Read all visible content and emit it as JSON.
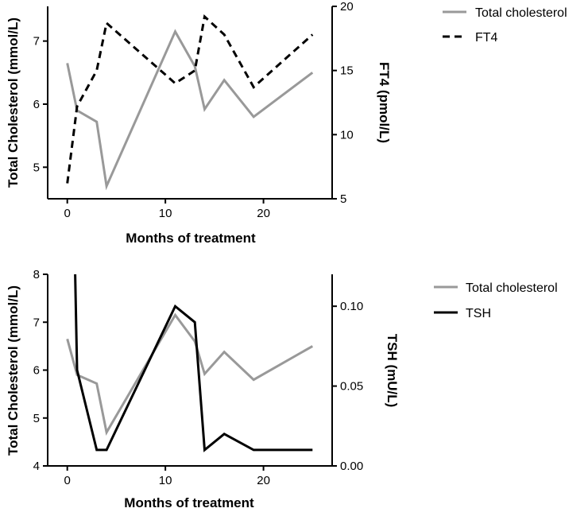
{
  "chart_data": [
    {
      "type": "line",
      "xlabel": "Months of treatment",
      "ylabel": "Total Cholesterol (mmol/L)",
      "y2label": "FT4 (pmol/L)",
      "xlim": [
        -2,
        27
      ],
      "ylim": [
        4.5,
        7.55
      ],
      "y2lim": [
        5,
        20
      ],
      "xticks": [
        0,
        10,
        20
      ],
      "yticks": [
        5,
        6,
        7
      ],
      "y2ticks": [
        5,
        10,
        15,
        20
      ],
      "legend_position": "top-right",
      "series": [
        {
          "name": "Total cholesterol",
          "axis": "left",
          "color": "#999999",
          "style": "solid",
          "x": [
            0,
            1,
            3,
            4,
            11,
            13,
            14,
            16,
            19,
            25
          ],
          "y": [
            6.65,
            5.9,
            5.72,
            4.7,
            7.15,
            6.6,
            5.92,
            6.38,
            5.8,
            6.5
          ]
        },
        {
          "name": "FT4",
          "axis": "right",
          "color": "#000000",
          "style": "dashed",
          "x": [
            0,
            1,
            3,
            4,
            11,
            13,
            14,
            16,
            19,
            25
          ],
          "y": [
            6.2,
            12.2,
            15.0,
            18.7,
            14.0,
            15.0,
            19.2,
            17.8,
            13.7,
            17.8
          ]
        }
      ]
    },
    {
      "type": "line",
      "xlabel": "Months of treatment",
      "ylabel": "Total Cholesterol (mmol/L)",
      "y2label": "TSH (mU/L)",
      "xlim": [
        -2,
        27
      ],
      "ylim": [
        4,
        8
      ],
      "y2lim": [
        0,
        0.12
      ],
      "xticks": [
        0,
        10,
        20
      ],
      "yticks": [
        4,
        5,
        6,
        7,
        8
      ],
      "y2ticks": [
        0.0,
        0.05,
        0.1
      ],
      "y2tick_labels": [
        "0.00",
        "0.05",
        "0.10"
      ],
      "legend_position": "top-right",
      "series": [
        {
          "name": "Total cholesterol",
          "axis": "left",
          "color": "#999999",
          "style": "solid",
          "x": [
            0,
            1,
            3,
            4,
            11,
            13,
            14,
            16,
            19,
            25
          ],
          "y": [
            6.65,
            5.9,
            5.72,
            4.7,
            7.15,
            6.6,
            5.92,
            6.38,
            5.8,
            6.5
          ]
        },
        {
          "name": "TSH",
          "axis": "right",
          "color": "#000000",
          "style": "solid",
          "x": [
            0.8,
            1,
            3,
            4,
            11,
            13,
            14,
            16,
            19,
            25
          ],
          "y": [
            0.12,
            0.06,
            0.01,
            0.01,
            0.1,
            0.09,
            0.01,
            0.02,
            0.01,
            0.01
          ]
        }
      ]
    }
  ]
}
